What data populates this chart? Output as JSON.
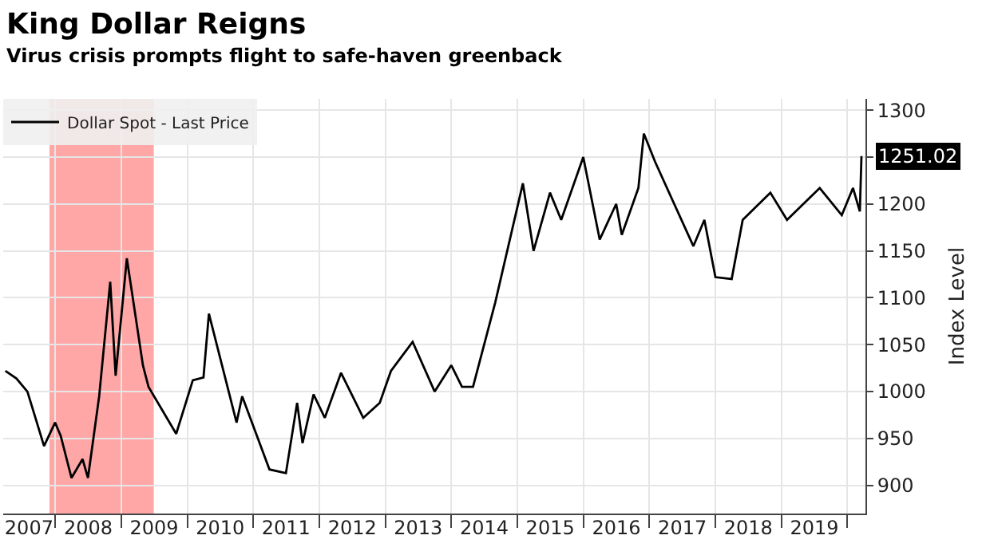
{
  "chart_data": {
    "type": "line",
    "title": "King Dollar Reigns",
    "subtitle": "Virus crisis prompts flight to safe-haven greenback",
    "ylabel": "Index Level",
    "x": [
      "2007-04",
      "2007-06",
      "2007-08",
      "2007-11",
      "2008-01",
      "2008-02",
      "2008-04",
      "2008-06",
      "2008-07",
      "2008-09",
      "2008-11",
      "2008-12",
      "2009-02",
      "2009-05",
      "2009-06",
      "2009-11",
      "2010-02",
      "2010-04",
      "2010-05",
      "2010-10",
      "2010-11",
      "2011-04",
      "2011-07",
      "2011-09",
      "2011-10",
      "2011-12",
      "2012-02",
      "2012-05",
      "2012-09",
      "2012-12",
      "2013-02",
      "2013-06",
      "2013-10",
      "2014-01",
      "2014-03",
      "2014-05",
      "2014-09",
      "2015-02",
      "2015-04",
      "2015-07",
      "2015-09",
      "2016-01",
      "2016-04",
      "2016-07",
      "2016-08",
      "2016-11",
      "2016-12",
      "2017-02",
      "2017-09",
      "2017-11",
      "2018-01",
      "2018-04",
      "2018-06",
      "2018-11",
      "2019-02",
      "2019-08",
      "2019-12",
      "2020-02",
      "2020-03-10",
      "2020-03-19"
    ],
    "series": [
      {
        "name": "Dollar Spot - Last Price",
        "color": "#000000",
        "values": [
          1022,
          1014,
          1000,
          942,
          967,
          953,
          908,
          928,
          908,
          995,
          1117,
          1017,
          1142,
          1028,
          1005,
          955,
          1012,
          1015,
          1083,
          967,
          995,
          917,
          913,
          988,
          945,
          997,
          972,
          1020,
          972,
          988,
          1022,
          1053,
          1000,
          1028,
          1005,
          1005,
          1095,
          1222,
          1150,
          1212,
          1183,
          1250,
          1162,
          1200,
          1167,
          1217,
          1275,
          1245,
          1155,
          1183,
          1122,
          1120,
          1183,
          1212,
          1183,
          1217,
          1188,
          1217,
          1192,
          1251.02
        ]
      }
    ],
    "xlim": [
      "2007-03-20",
      "2020-04-10"
    ],
    "xticks": [
      {
        "value": "2008-01-01",
        "label": null
      },
      {
        "value": "2009-01-01",
        "label": null
      },
      {
        "value": "2010-01-01",
        "label": null
      },
      {
        "value": "2011-01-01",
        "label": null
      },
      {
        "value": "2012-01-01",
        "label": null
      },
      {
        "value": "2013-01-01",
        "label": null
      },
      {
        "value": "2014-01-01",
        "label": null
      },
      {
        "value": "2015-01-01",
        "label": null
      },
      {
        "value": "2016-01-01",
        "label": null
      },
      {
        "value": "2017-01-01",
        "label": null
      },
      {
        "value": "2018-01-01",
        "label": null
      },
      {
        "value": "2019-01-01",
        "label": null
      },
      {
        "value": "2020-01-01",
        "label": null
      },
      {
        "value": "2007-08-10",
        "label": "2007"
      },
      {
        "value": "2008-07-02",
        "label": "2008"
      },
      {
        "value": "2009-07-02",
        "label": "2009"
      },
      {
        "value": "2010-07-02",
        "label": "2010"
      },
      {
        "value": "2011-07-02",
        "label": "2011"
      },
      {
        "value": "2012-07-02",
        "label": "2012"
      },
      {
        "value": "2013-07-02",
        "label": "2013"
      },
      {
        "value": "2014-07-02",
        "label": "2014"
      },
      {
        "value": "2015-07-02",
        "label": "2015"
      },
      {
        "value": "2016-07-02",
        "label": "2016"
      },
      {
        "value": "2017-07-02",
        "label": "2017"
      },
      {
        "value": "2018-07-02",
        "label": "2018"
      },
      {
        "value": "2019-07-02",
        "label": "2019"
      }
    ],
    "ylim": [
      870,
      1312
    ],
    "yticks": [
      900,
      950,
      1000,
      1050,
      1100,
      1150,
      1200,
      {
        "value": 1250,
        "label": null
      },
      1300
    ],
    "bands": [
      {
        "axis": "x",
        "from": "2007-12-01",
        "to": "2009-06-30",
        "color": "#ff8a8a"
      }
    ],
    "annotations": [
      {
        "text": "1251.02",
        "x": "2020-03-19",
        "y": 1251.02
      }
    ],
    "grid": true,
    "legend": "top left"
  }
}
